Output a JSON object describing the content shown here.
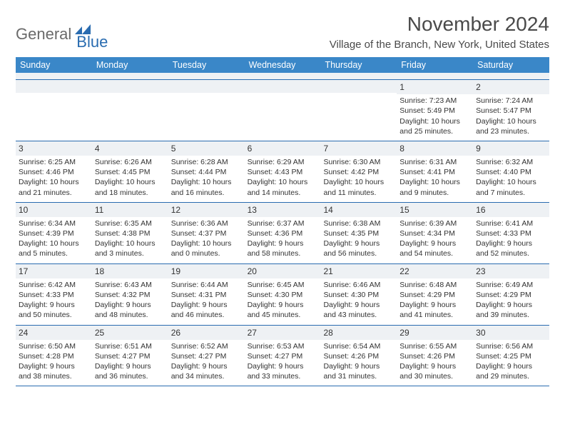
{
  "brand": {
    "part1": "General",
    "part2": "Blue"
  },
  "title": "November 2024",
  "location": "Village of the Branch, New York, United States",
  "colors": {
    "header_bg": "#3a87c8",
    "rule": "#2a6cb0",
    "daynum_bg": "#eef1f4",
    "text": "#333333",
    "logo_gray": "#6a6a6a",
    "logo_blue": "#2a6cb0",
    "page_bg": "#ffffff"
  },
  "typography": {
    "title_fontsize": 28,
    "location_fontsize": 15,
    "head_fontsize": 12.5,
    "daynum_fontsize": 12,
    "body_fontsize": 10.5
  },
  "dayNames": [
    "Sunday",
    "Monday",
    "Tuesday",
    "Wednesday",
    "Thursday",
    "Friday",
    "Saturday"
  ],
  "weeks": [
    [
      {
        "n": "",
        "sr": "",
        "ss": "",
        "dl": ""
      },
      {
        "n": "",
        "sr": "",
        "ss": "",
        "dl": ""
      },
      {
        "n": "",
        "sr": "",
        "ss": "",
        "dl": ""
      },
      {
        "n": "",
        "sr": "",
        "ss": "",
        "dl": ""
      },
      {
        "n": "",
        "sr": "",
        "ss": "",
        "dl": ""
      },
      {
        "n": "1",
        "sr": "Sunrise: 7:23 AM",
        "ss": "Sunset: 5:49 PM",
        "dl": "Daylight: 10 hours and 25 minutes."
      },
      {
        "n": "2",
        "sr": "Sunrise: 7:24 AM",
        "ss": "Sunset: 5:47 PM",
        "dl": "Daylight: 10 hours and 23 minutes."
      }
    ],
    [
      {
        "n": "3",
        "sr": "Sunrise: 6:25 AM",
        "ss": "Sunset: 4:46 PM",
        "dl": "Daylight: 10 hours and 21 minutes."
      },
      {
        "n": "4",
        "sr": "Sunrise: 6:26 AM",
        "ss": "Sunset: 4:45 PM",
        "dl": "Daylight: 10 hours and 18 minutes."
      },
      {
        "n": "5",
        "sr": "Sunrise: 6:28 AM",
        "ss": "Sunset: 4:44 PM",
        "dl": "Daylight: 10 hours and 16 minutes."
      },
      {
        "n": "6",
        "sr": "Sunrise: 6:29 AM",
        "ss": "Sunset: 4:43 PM",
        "dl": "Daylight: 10 hours and 14 minutes."
      },
      {
        "n": "7",
        "sr": "Sunrise: 6:30 AM",
        "ss": "Sunset: 4:42 PM",
        "dl": "Daylight: 10 hours and 11 minutes."
      },
      {
        "n": "8",
        "sr": "Sunrise: 6:31 AM",
        "ss": "Sunset: 4:41 PM",
        "dl": "Daylight: 10 hours and 9 minutes."
      },
      {
        "n": "9",
        "sr": "Sunrise: 6:32 AM",
        "ss": "Sunset: 4:40 PM",
        "dl": "Daylight: 10 hours and 7 minutes."
      }
    ],
    [
      {
        "n": "10",
        "sr": "Sunrise: 6:34 AM",
        "ss": "Sunset: 4:39 PM",
        "dl": "Daylight: 10 hours and 5 minutes."
      },
      {
        "n": "11",
        "sr": "Sunrise: 6:35 AM",
        "ss": "Sunset: 4:38 PM",
        "dl": "Daylight: 10 hours and 3 minutes."
      },
      {
        "n": "12",
        "sr": "Sunrise: 6:36 AM",
        "ss": "Sunset: 4:37 PM",
        "dl": "Daylight: 10 hours and 0 minutes."
      },
      {
        "n": "13",
        "sr": "Sunrise: 6:37 AM",
        "ss": "Sunset: 4:36 PM",
        "dl": "Daylight: 9 hours and 58 minutes."
      },
      {
        "n": "14",
        "sr": "Sunrise: 6:38 AM",
        "ss": "Sunset: 4:35 PM",
        "dl": "Daylight: 9 hours and 56 minutes."
      },
      {
        "n": "15",
        "sr": "Sunrise: 6:39 AM",
        "ss": "Sunset: 4:34 PM",
        "dl": "Daylight: 9 hours and 54 minutes."
      },
      {
        "n": "16",
        "sr": "Sunrise: 6:41 AM",
        "ss": "Sunset: 4:33 PM",
        "dl": "Daylight: 9 hours and 52 minutes."
      }
    ],
    [
      {
        "n": "17",
        "sr": "Sunrise: 6:42 AM",
        "ss": "Sunset: 4:33 PM",
        "dl": "Daylight: 9 hours and 50 minutes."
      },
      {
        "n": "18",
        "sr": "Sunrise: 6:43 AM",
        "ss": "Sunset: 4:32 PM",
        "dl": "Daylight: 9 hours and 48 minutes."
      },
      {
        "n": "19",
        "sr": "Sunrise: 6:44 AM",
        "ss": "Sunset: 4:31 PM",
        "dl": "Daylight: 9 hours and 46 minutes."
      },
      {
        "n": "20",
        "sr": "Sunrise: 6:45 AM",
        "ss": "Sunset: 4:30 PM",
        "dl": "Daylight: 9 hours and 45 minutes."
      },
      {
        "n": "21",
        "sr": "Sunrise: 6:46 AM",
        "ss": "Sunset: 4:30 PM",
        "dl": "Daylight: 9 hours and 43 minutes."
      },
      {
        "n": "22",
        "sr": "Sunrise: 6:48 AM",
        "ss": "Sunset: 4:29 PM",
        "dl": "Daylight: 9 hours and 41 minutes."
      },
      {
        "n": "23",
        "sr": "Sunrise: 6:49 AM",
        "ss": "Sunset: 4:29 PM",
        "dl": "Daylight: 9 hours and 39 minutes."
      }
    ],
    [
      {
        "n": "24",
        "sr": "Sunrise: 6:50 AM",
        "ss": "Sunset: 4:28 PM",
        "dl": "Daylight: 9 hours and 38 minutes."
      },
      {
        "n": "25",
        "sr": "Sunrise: 6:51 AM",
        "ss": "Sunset: 4:27 PM",
        "dl": "Daylight: 9 hours and 36 minutes."
      },
      {
        "n": "26",
        "sr": "Sunrise: 6:52 AM",
        "ss": "Sunset: 4:27 PM",
        "dl": "Daylight: 9 hours and 34 minutes."
      },
      {
        "n": "27",
        "sr": "Sunrise: 6:53 AM",
        "ss": "Sunset: 4:27 PM",
        "dl": "Daylight: 9 hours and 33 minutes."
      },
      {
        "n": "28",
        "sr": "Sunrise: 6:54 AM",
        "ss": "Sunset: 4:26 PM",
        "dl": "Daylight: 9 hours and 31 minutes."
      },
      {
        "n": "29",
        "sr": "Sunrise: 6:55 AM",
        "ss": "Sunset: 4:26 PM",
        "dl": "Daylight: 9 hours and 30 minutes."
      },
      {
        "n": "30",
        "sr": "Sunrise: 6:56 AM",
        "ss": "Sunset: 4:25 PM",
        "dl": "Daylight: 9 hours and 29 minutes."
      }
    ]
  ]
}
